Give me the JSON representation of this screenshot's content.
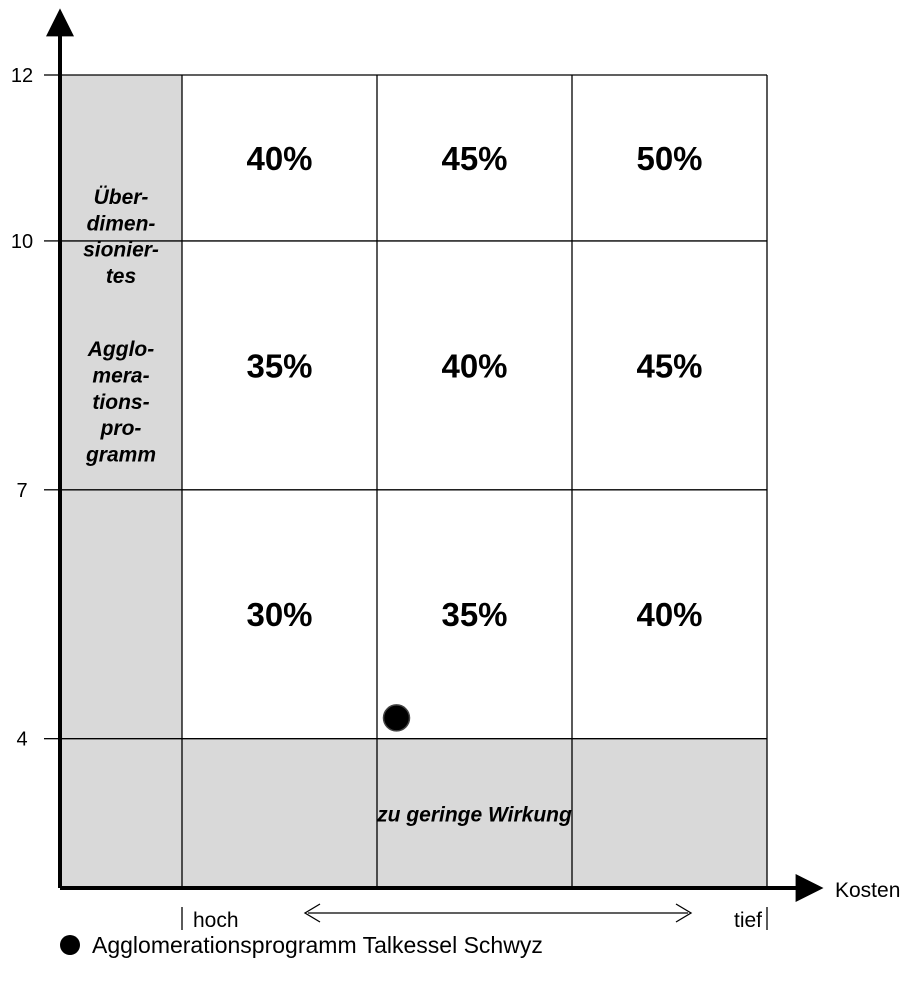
{
  "chart_data": {
    "type": "heatmap",
    "y_axis": {
      "ticks": [
        4,
        7,
        10,
        12
      ],
      "range": [
        2.2,
        12
      ]
    },
    "x_axis": {
      "label": "Kosten",
      "low_label": "hoch",
      "high_label": "tief",
      "arrow": "double"
    },
    "columns": 4,
    "rows": [
      {
        "range": [
          10,
          12
        ],
        "cells": [
          "",
          "40%",
          "45%",
          "50%"
        ]
      },
      {
        "range": [
          7,
          10
        ],
        "cells": [
          "",
          "35%",
          "40%",
          "45%"
        ]
      },
      {
        "range": [
          4,
          7
        ],
        "cells": [
          "",
          "30%",
          "35%",
          "40%"
        ]
      },
      {
        "range": [
          2.2,
          4
        ],
        "cells": [
          "",
          "",
          "",
          ""
        ]
      }
    ],
    "shaded_regions": [
      {
        "id": "oversized",
        "column": 0,
        "y_range": [
          2.2,
          12
        ],
        "lines": [
          "Über-",
          "dimen-",
          "sionier-",
          "tes",
          "Agglo-",
          "mera-",
          "tions-",
          "pro-",
          "gramm"
        ]
      },
      {
        "id": "low_effect",
        "columns": [
          1,
          3
        ],
        "y_range": [
          2.2,
          4
        ],
        "label": "zu geringe Wirkung"
      }
    ],
    "points": [
      {
        "name": "Agglomerationsprogramm Talkessel Schwyz",
        "cost_position": 2.1,
        "y": 4.25
      }
    ],
    "legend": {
      "placement": "bottom-left",
      "entries": [
        "Agglomerationsprogramm Talkessel Schwyz"
      ]
    },
    "colors": {
      "shade": "#d9d9d9",
      "line": "#000000"
    }
  }
}
